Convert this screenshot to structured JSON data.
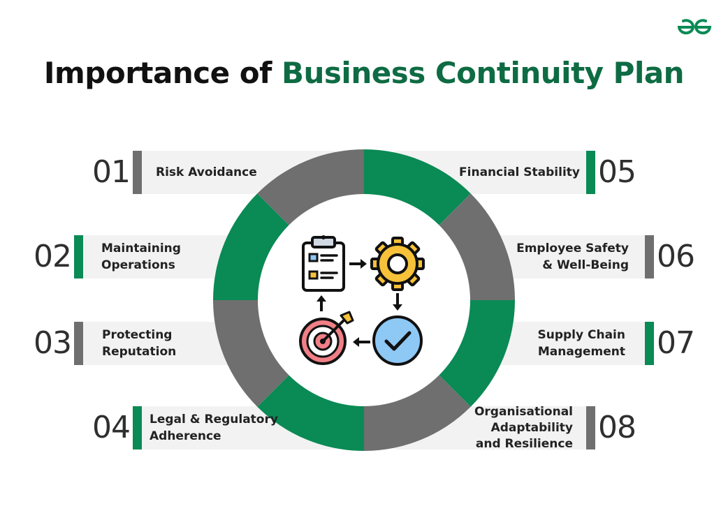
{
  "title": {
    "part1": "Importance of ",
    "part2": "Business Continuity Plan"
  },
  "colors": {
    "accent_green": "#0a8a55",
    "title_green": "#0e6b43",
    "gray": "#6f6f6f",
    "band": "#f2f2f2"
  },
  "logo": {
    "icon": "geeksforgeeks-logo-icon"
  },
  "items": [
    {
      "number": "01",
      "label": "Risk Avoidance"
    },
    {
      "number": "02",
      "label": "Maintaining\nOperations"
    },
    {
      "number": "03",
      "label": "Protecting\nReputation"
    },
    {
      "number": "04",
      "label": "Legal & Regulatory\nAdherence"
    },
    {
      "number": "05",
      "label": "Financial Stability"
    },
    {
      "number": "06",
      "label": "Employee Safety\n& Well-Being"
    },
    {
      "number": "07",
      "label": "Supply Chain\nManagement"
    },
    {
      "number": "08",
      "label": "Organisational\nAdaptability\nand Resilience"
    }
  ],
  "center_icons": [
    "clipboard-checklist-icon",
    "gear-icon",
    "checkmark-badge-icon",
    "target-arrow-icon"
  ]
}
